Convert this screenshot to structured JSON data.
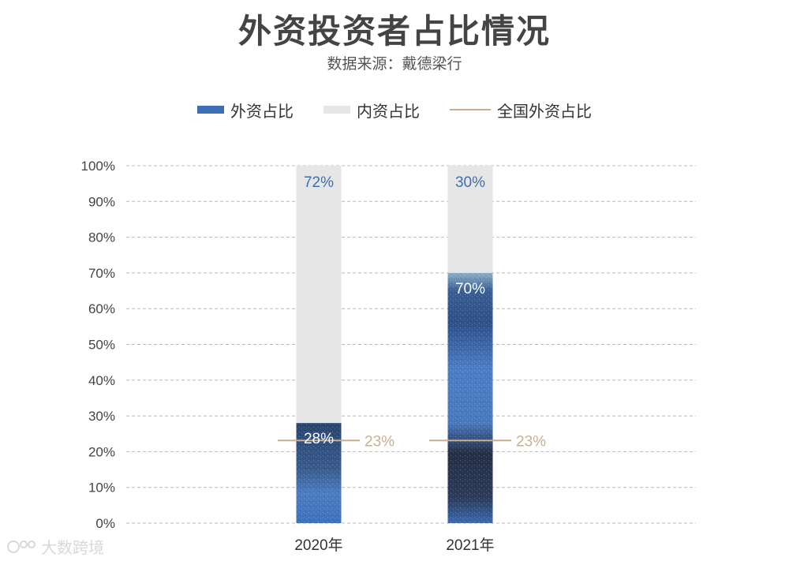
{
  "chart_data": {
    "type": "bar",
    "stacked": true,
    "title": "外资投资者占比情况",
    "subtitle": "数据来源：戴德梁行",
    "categories": [
      "2020年",
      "2021年"
    ],
    "series": [
      {
        "name": "外资占比",
        "values": [
          28,
          70
        ],
        "labels": [
          "28%",
          "70%"
        ],
        "color": "#3d6eb4"
      },
      {
        "name": "内资占比",
        "values": [
          72,
          30
        ],
        "labels": [
          "72%",
          "30%"
        ],
        "color": "#e6e6e6"
      }
    ],
    "reference_line": {
      "name": "全国外资占比",
      "values": [
        23,
        23
      ],
      "labels": [
        "23%",
        "23%"
      ],
      "color": "#c8ae93"
    },
    "ylim": [
      0,
      100
    ],
    "yticks": [
      0,
      10,
      20,
      30,
      40,
      50,
      60,
      70,
      80,
      90,
      100
    ],
    "ytick_labels": [
      "0%",
      "10%",
      "20%",
      "30%",
      "40%",
      "50%",
      "60%",
      "70%",
      "80%",
      "90%",
      "100%"
    ],
    "grid": true,
    "legend_position": "top-center"
  },
  "watermark": {
    "text": "大数跨境",
    "icon": "brand-logo-icon"
  }
}
